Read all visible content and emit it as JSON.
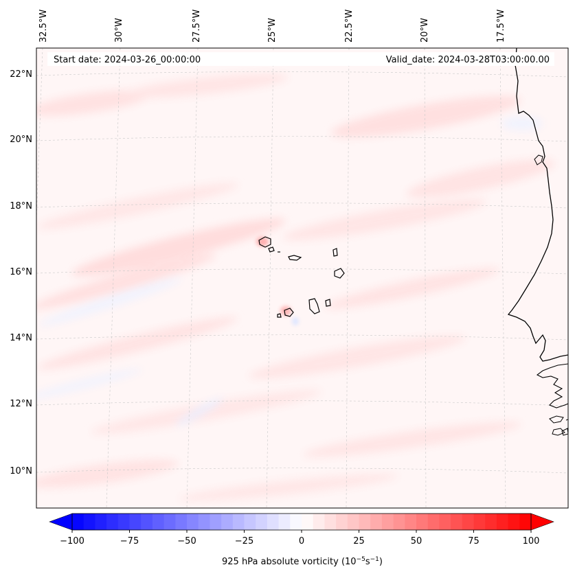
{
  "header": {
    "start_date": "Start date: 2024-03-26_00:00:00",
    "valid_date": "Valid_date: 2024-03-28T03:00:00.00"
  },
  "map": {
    "longitude_labels": [
      "32.5°W",
      "30°W",
      "27.5°W",
      "25°W",
      "22.5°W",
      "20°W",
      "17.5°W"
    ],
    "latitude_labels": [
      "22°N",
      "20°N",
      "18°N",
      "16°N",
      "14°N",
      "12°N",
      "10°N"
    ]
  },
  "colorbar": {
    "label_text": "925 hPa absolute vorticity (10",
    "label_exp1": "−5",
    "label_mid": "s",
    "label_exp2": "−1",
    "label_close": ")",
    "ticks": [
      "−100",
      "−75",
      "−50",
      "−25",
      "0",
      "25",
      "50",
      "75",
      "100"
    ],
    "min_color": "#0000ff",
    "mid_color": "#ffffff",
    "max_color": "#ff0000"
  }
}
